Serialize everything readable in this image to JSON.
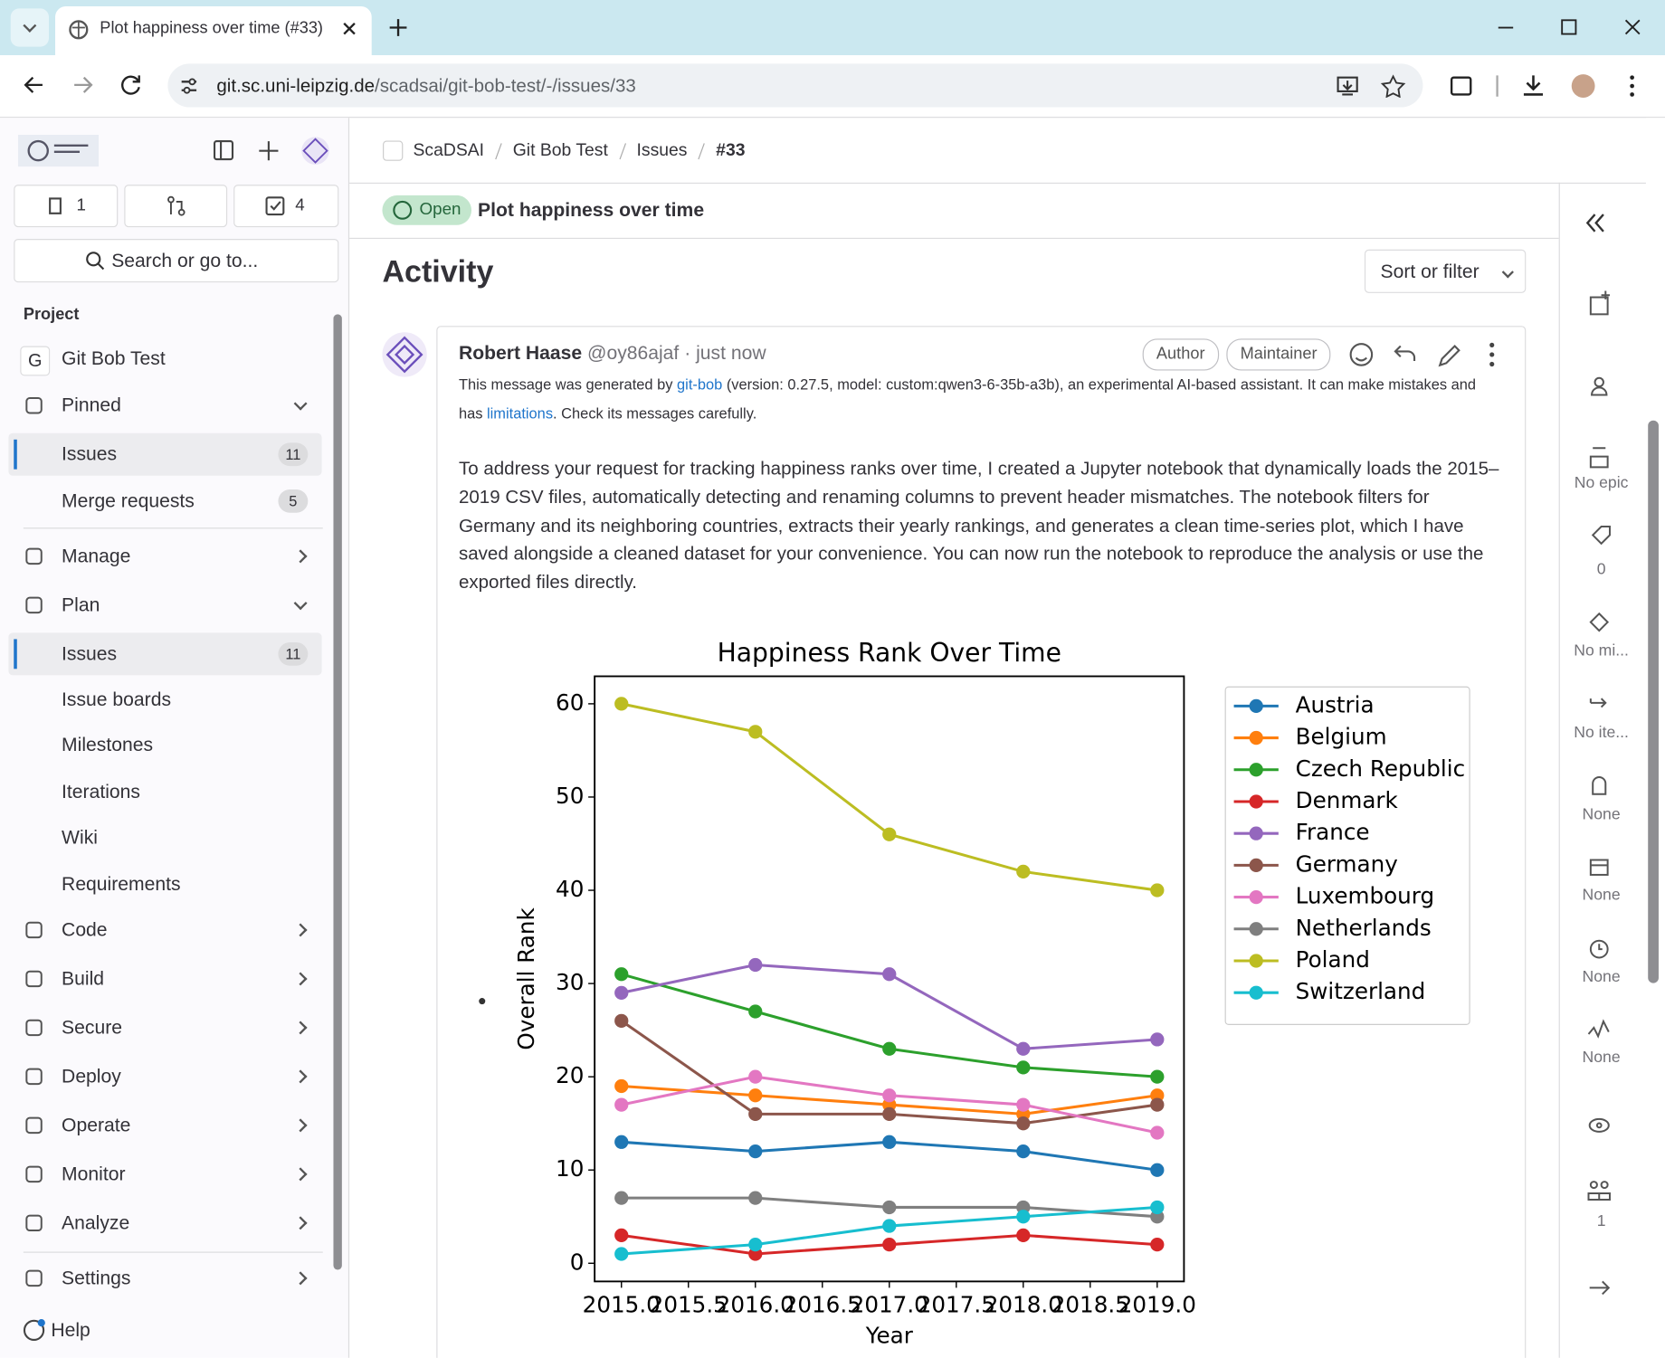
{
  "browser": {
    "tab_title": "Plot happiness over time (#33)",
    "url_host": "git.sc.uni-leipzig.de",
    "url_path": "/scadsai/git-bob-test/-/issues/33"
  },
  "sidebar": {
    "issue_count": 1,
    "todo_count": 4,
    "search": "Search or go to...",
    "section": "Project",
    "project_initial": "G",
    "project": "Git Bob Test",
    "items": [
      {
        "label": "Pinned"
      },
      {
        "label": "Issues",
        "count": 11
      },
      {
        "label": "Merge requests",
        "count": 5
      },
      {
        "label": "Manage"
      },
      {
        "label": "Plan"
      },
      {
        "label": "Issues",
        "count": 11
      },
      {
        "label": "Issue boards"
      },
      {
        "label": "Milestones"
      },
      {
        "label": "Iterations"
      },
      {
        "label": "Wiki"
      },
      {
        "label": "Requirements"
      },
      {
        "label": "Code"
      },
      {
        "label": "Build"
      },
      {
        "label": "Secure"
      },
      {
        "label": "Deploy"
      },
      {
        "label": "Operate"
      },
      {
        "label": "Monitor"
      },
      {
        "label": "Analyze"
      },
      {
        "label": "Settings"
      }
    ],
    "help": "Help"
  },
  "breadcrumbs": [
    "ScaDSAI",
    "Git Bob Test",
    "Issues",
    "#33"
  ],
  "issue": {
    "status": "Open",
    "title": "Plot happiness over time"
  },
  "activity": {
    "heading": "Activity",
    "sort": "Sort or filter"
  },
  "comment": {
    "author": "Robert Haase",
    "handle": "@oy86ajaf",
    "time": "· just now",
    "badges": [
      "Author",
      "Maintainer"
    ],
    "disclaimer": [
      "This message was generated by ",
      "git-bob",
      " (version: 0.27.5, model: custom:qwen3-6-35b-a3b), an experimental AI-based assistant. It can make mistakes and has ",
      "limitations",
      ". Check its messages carefully."
    ],
    "body": "To address your request for tracking happiness ranks over time, I created a Jupyter notebook that dynamically loads the 2015–2019 CSV files, automatically detecting and renaming columns to prevent header mismatches. The notebook filters for Germany and its neighboring countries, extracts their yearly rankings, and generates a clean time-series plot, which I have saved alongside a cleaned dataset for your convenience. You can now run the notebook to reproduce the analysis or use the exported files directly."
  },
  "right_panel": [
    "No epic",
    "0",
    "No mi...",
    "No ite...",
    "None",
    "None",
    "None",
    "None",
    "1"
  ],
  "chart_data": {
    "type": "line",
    "title": "Happiness Rank Over Time",
    "xlabel": "Year",
    "ylabel": "Overall Rank",
    "x": [
      2015,
      2016,
      2017,
      2018,
      2019
    ],
    "series": [
      {
        "name": "Austria",
        "color": "#1f77b4",
        "values": [
          13,
          12,
          13,
          12,
          10
        ]
      },
      {
        "name": "Belgium",
        "color": "#ff7f0e",
        "values": [
          19,
          18,
          17,
          16,
          18
        ]
      },
      {
        "name": "Czech Republic",
        "color": "#2ca02c",
        "values": [
          31,
          27,
          23,
          21,
          20
        ]
      },
      {
        "name": "Denmark",
        "color": "#d62728",
        "values": [
          3,
          1,
          2,
          3,
          2
        ]
      },
      {
        "name": "France",
        "color": "#9467bd",
        "values": [
          29,
          32,
          31,
          23,
          24
        ]
      },
      {
        "name": "Germany",
        "color": "#8c564b",
        "values": [
          26,
          16,
          16,
          15,
          17
        ]
      },
      {
        "name": "Luxembourg",
        "color": "#e377c2",
        "values": [
          17,
          20,
          18,
          17,
          14
        ]
      },
      {
        "name": "Netherlands",
        "color": "#7f7f7f",
        "values": [
          7,
          7,
          6,
          6,
          5
        ]
      },
      {
        "name": "Poland",
        "color": "#bcbd22",
        "values": [
          60,
          57,
          46,
          42,
          40
        ]
      },
      {
        "name": "Switzerland",
        "color": "#17becf",
        "values": [
          1,
          2,
          4,
          5,
          6
        ]
      }
    ],
    "xlim": [
      2014.8,
      2019.2
    ],
    "ylim": [
      -1.95,
      62.95
    ],
    "xticks": [
      {
        "value": 2015,
        "label": "2015.0"
      },
      2015.5,
      {
        "value": 2016,
        "label": "2016.0"
      },
      2016.5,
      {
        "value": 2017,
        "label": "2017.0"
      },
      2017.5,
      {
        "value": 2018,
        "label": "2018.0"
      },
      2018.5,
      {
        "value": 2019,
        "label": "2019.0"
      }
    ],
    "yticks": [
      0,
      10,
      20,
      30,
      40,
      50,
      60
    ],
    "legend": "outside right"
  }
}
